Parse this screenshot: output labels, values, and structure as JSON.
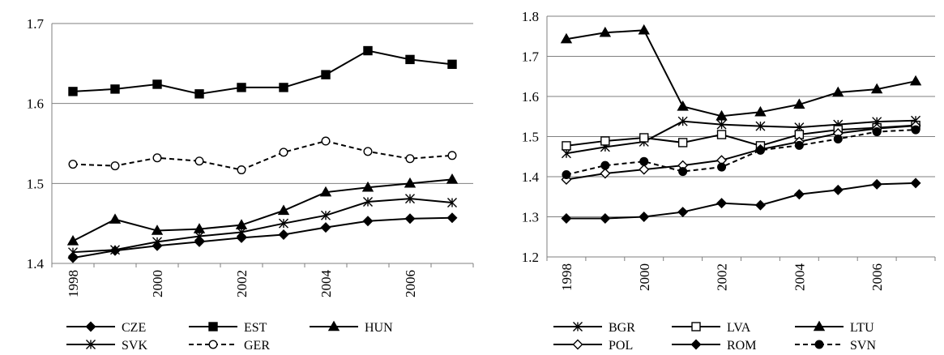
{
  "chart_data": [
    {
      "type": "line",
      "x": [
        1998,
        1999,
        2000,
        2001,
        2002,
        2003,
        2004,
        2005,
        2006,
        2007
      ],
      "xtick_labels": [
        "1998",
        "2000",
        "2002",
        "2004",
        "2006"
      ],
      "ylim": [
        1.4,
        1.7
      ],
      "ytick_labels": [
        "1.4",
        "1.5",
        "1.6",
        "1.7"
      ],
      "grid": "horizontal",
      "legend_position": "bottom",
      "series": [
        {
          "name": "CZE",
          "marker": "diamond-filled",
          "dash": "solid",
          "color": "#000000",
          "values": [
            1.407,
            1.416,
            1.422,
            1.427,
            1.432,
            1.436,
            1.445,
            1.453,
            1.456,
            1.457
          ]
        },
        {
          "name": "EST",
          "marker": "square-filled",
          "dash": "solid",
          "color": "#000000",
          "values": [
            1.615,
            1.618,
            1.624,
            1.612,
            1.62,
            1.62,
            1.636,
            1.666,
            1.655,
            1.649
          ]
        },
        {
          "name": "HUN",
          "marker": "triangle-filled",
          "dash": "solid",
          "color": "#000000",
          "values": [
            1.428,
            1.455,
            1.441,
            1.443,
            1.448,
            1.466,
            1.489,
            1.495,
            1.5,
            1.505
          ]
        },
        {
          "name": "SVK",
          "marker": "asterisk",
          "dash": "solid",
          "color": "#000000",
          "values": [
            1.414,
            1.417,
            1.427,
            1.434,
            1.439,
            1.45,
            1.46,
            1.477,
            1.481,
            1.476
          ]
        },
        {
          "name": "GER",
          "marker": "circle-open",
          "dash": "dashed",
          "color": "#000000",
          "values": [
            1.524,
            1.522,
            1.532,
            1.528,
            1.517,
            1.539,
            1.553,
            1.54,
            1.531,
            1.535
          ]
        }
      ]
    },
    {
      "type": "line",
      "x": [
        1998,
        1999,
        2000,
        2001,
        2002,
        2003,
        2004,
        2005,
        2006,
        2007
      ],
      "xtick_labels": [
        "1998",
        "2000",
        "2002",
        "2004",
        "2006"
      ],
      "ylim": [
        1.2,
        1.8
      ],
      "ytick_labels": [
        "1.2",
        "1.3",
        "1.4",
        "1.5",
        "1.6",
        "1.7",
        "1.8"
      ],
      "grid": "horizontal",
      "legend_position": "bottom",
      "series": [
        {
          "name": "BGR",
          "marker": "asterisk",
          "dash": "solid",
          "color": "#000000",
          "values": [
            1.458,
            1.474,
            1.487,
            1.538,
            1.53,
            1.526,
            1.523,
            1.53,
            1.537,
            1.54
          ]
        },
        {
          "name": "LVA",
          "marker": "square-open",
          "dash": "solid",
          "color": "#000000",
          "values": [
            1.477,
            1.489,
            1.497,
            1.485,
            1.505,
            1.477,
            1.505,
            1.517,
            1.522,
            1.528
          ]
        },
        {
          "name": "LTU",
          "marker": "triangle-filled",
          "dash": "solid",
          "color": "#000000",
          "values": [
            1.743,
            1.759,
            1.765,
            1.575,
            1.551,
            1.561,
            1.58,
            1.61,
            1.618,
            1.638
          ]
        },
        {
          "name": "POL",
          "marker": "diamond-open",
          "dash": "solid",
          "color": "#000000",
          "values": [
            1.393,
            1.408,
            1.418,
            1.428,
            1.441,
            1.468,
            1.487,
            1.508,
            1.52,
            1.527
          ]
        },
        {
          "name": "ROM",
          "marker": "diamond-filled",
          "dash": "solid",
          "color": "#000000",
          "values": [
            1.296,
            1.296,
            1.3,
            1.312,
            1.334,
            1.329,
            1.356,
            1.367,
            1.381,
            1.384
          ]
        },
        {
          "name": "SVN",
          "marker": "circle-filled",
          "dash": "dashed",
          "color": "#000000",
          "values": [
            1.405,
            1.428,
            1.438,
            1.413,
            1.424,
            1.466,
            1.478,
            1.494,
            1.512,
            1.517
          ]
        }
      ]
    }
  ]
}
